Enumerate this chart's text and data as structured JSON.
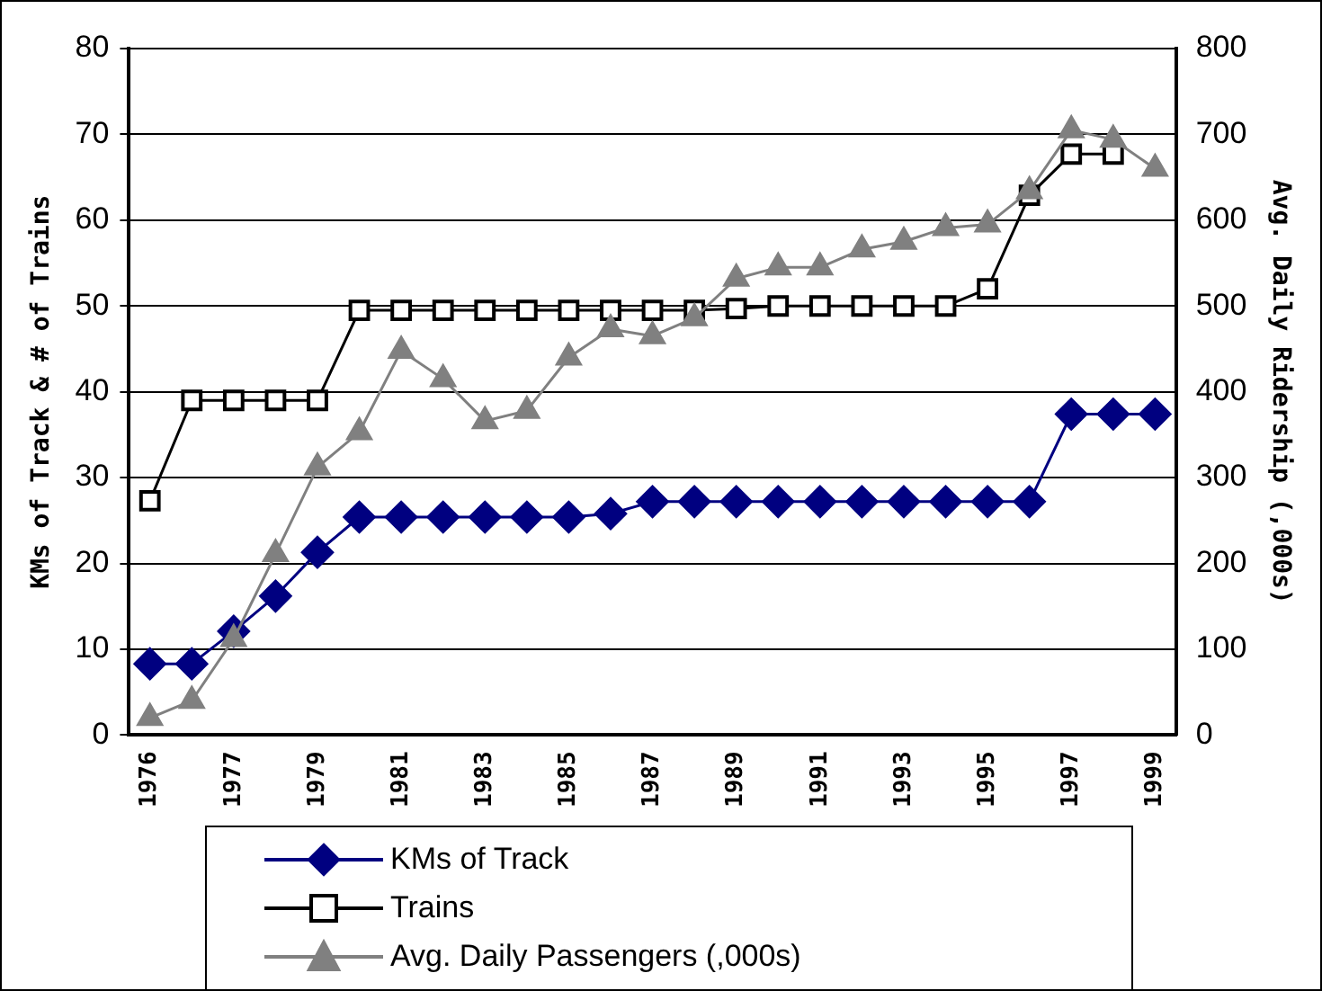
{
  "chart_data": {
    "type": "line",
    "xlabel": null,
    "ylabel": "KMs of Track & # of Trains",
    "y2label": "Avg. Daily Ridership (,000s)",
    "categories": [
      "1976",
      null,
      "1977",
      null,
      "1979",
      null,
      "1981",
      null,
      "1983",
      null,
      "1985",
      null,
      "1987",
      null,
      "1989",
      null,
      "1991",
      null,
      "1993",
      null,
      "1995",
      null,
      "1997",
      null,
      "1999"
    ],
    "series": [
      {
        "name": "KMs of Track",
        "color": "#000080",
        "marker": "diamond",
        "values": [
          8.3,
          8.3,
          12.1,
          16.2,
          21.3,
          25.4,
          25.4,
          25.4,
          25.4,
          25.4,
          25.4,
          25.8,
          27.2,
          27.2,
          27.2,
          27.2,
          27.2,
          27.2,
          27.2,
          27.2,
          27.2,
          27.2,
          37.4,
          37.4,
          37.4
        ]
      },
      {
        "name": "Trains",
        "color": "#000000",
        "marker": "square",
        "values": [
          27.3,
          39,
          39,
          39,
          39,
          49.5,
          49.5,
          49.5,
          49.5,
          49.5,
          49.5,
          49.5,
          49.5,
          49.5,
          49.7,
          50,
          50,
          50,
          50,
          50,
          52,
          62.9,
          67.7,
          67.7,
          null
        ]
      },
      {
        "name": "Avg. Daily Passengers (,000s)",
        "color": "#808080",
        "marker": "triangle",
        "axis": "y2",
        "values": [
          20,
          40,
          112,
          211,
          312,
          353,
          448,
          415,
          366,
          378,
          440,
          473,
          465,
          486,
          532,
          545,
          545,
          566,
          575,
          591,
          595,
          634,
          705,
          694,
          660
        ]
      }
    ],
    "ylim": [
      0,
      80
    ],
    "yticks": [
      0,
      10,
      20,
      30,
      40,
      50,
      60,
      70,
      80
    ],
    "y2lim": [
      0,
      800
    ],
    "y2ticks": [
      0,
      100,
      200,
      300,
      400,
      500,
      600,
      700,
      800
    ],
    "grid": "y",
    "legend": "bottom",
    "line_style": "solid"
  }
}
